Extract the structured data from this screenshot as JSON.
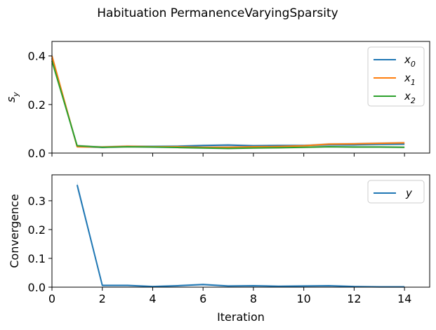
{
  "figure": {
    "title": "Habituation PermanenceVaryingSparsity"
  },
  "chart_data": [
    {
      "type": "line",
      "panel": "top",
      "title": "",
      "xlabel": "",
      "ylabel_base": "s",
      "ylabel_sub": "y",
      "xlim": [
        0,
        15
      ],
      "ylim": [
        0,
        0.46
      ],
      "xticks": [
        0,
        2,
        4,
        6,
        8,
        10,
        12,
        14
      ],
      "xtick_labels_visible": false,
      "yticks": [
        0.0,
        0.2,
        0.4
      ],
      "ytick_labels": [
        "0.0",
        "0.2",
        "0.4"
      ],
      "legend_position": "top-right",
      "x": [
        0,
        1,
        2,
        3,
        4,
        5,
        6,
        7,
        8,
        9,
        10,
        11,
        12,
        13,
        14
      ],
      "series": [
        {
          "name_base": "x",
          "name_sub": "0",
          "color": "#1f77b4",
          "values": [
            0.39,
            0.028,
            0.024,
            0.027,
            0.027,
            0.028,
            0.031,
            0.033,
            0.03,
            0.031,
            0.031,
            0.034,
            0.034,
            0.036,
            0.037
          ]
        },
        {
          "name_base": "x",
          "name_sub": "1",
          "color": "#ff7f0e",
          "values": [
            0.4,
            0.026,
            0.025,
            0.028,
            0.026,
            0.026,
            0.024,
            0.024,
            0.026,
            0.027,
            0.03,
            0.037,
            0.038,
            0.04,
            0.042
          ]
        },
        {
          "name_base": "x",
          "name_sub": "2",
          "color": "#2ca02c",
          "values": [
            0.38,
            0.03,
            0.024,
            0.026,
            0.025,
            0.023,
            0.021,
            0.019,
            0.021,
            0.022,
            0.024,
            0.026,
            0.025,
            0.025,
            0.024
          ]
        }
      ],
      "band_color": "#c8c8c8"
    },
    {
      "type": "line",
      "panel": "bottom",
      "title": "",
      "xlabel": "Iteration",
      "ylabel": "Convergence",
      "xlim": [
        0,
        15
      ],
      "ylim": [
        0,
        0.39
      ],
      "xticks": [
        0,
        2,
        4,
        6,
        8,
        10,
        12,
        14
      ],
      "xtick_labels": [
        "0",
        "2",
        "4",
        "6",
        "8",
        "10",
        "12",
        "14"
      ],
      "yticks": [
        0.0,
        0.1,
        0.2,
        0.3
      ],
      "ytick_labels": [
        "0.0",
        "0.1",
        "0.2",
        "0.3"
      ],
      "legend_position": "top-right",
      "x": [
        1,
        2,
        3,
        4,
        5,
        6,
        7,
        8,
        9,
        10,
        11,
        12,
        13,
        14
      ],
      "series": [
        {
          "name": "y",
          "color": "#1f77b4",
          "values": [
            0.355,
            0.006,
            0.006,
            0.002,
            0.005,
            0.009,
            0.004,
            0.005,
            0.003,
            0.004,
            0.005,
            0.002,
            0.001,
            0.001
          ]
        }
      ],
      "band_color": "#c8d8e8"
    }
  ]
}
